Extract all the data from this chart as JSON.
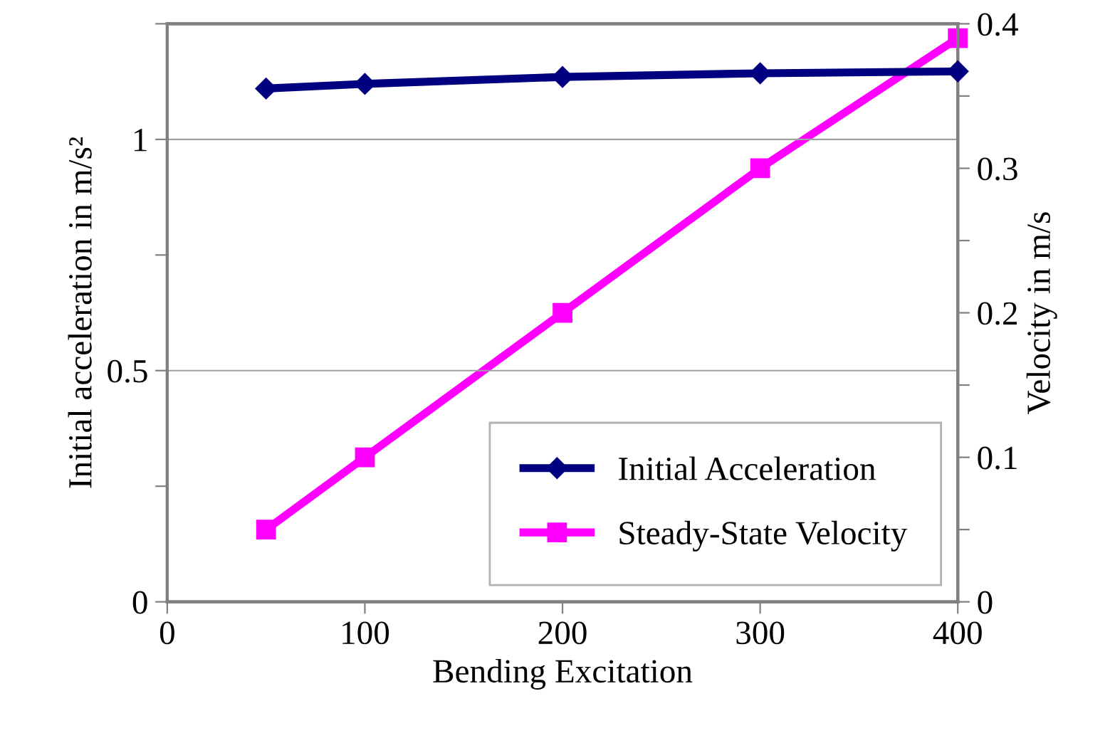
{
  "chart_data": {
    "type": "line",
    "xlabel": "Bending Excitation",
    "ylabel": "Initial acceleration in m/s²",
    "y2label": "Velocity in m/s",
    "x": [
      50,
      100,
      200,
      300,
      400
    ],
    "series": [
      {
        "name": "Initial Acceleration",
        "color": "#000080",
        "values": [
          1.11,
          1.12,
          1.135,
          1.143,
          1.147
        ],
        "marker": "diamond"
      },
      {
        "name": "Steady-State Velocity",
        "color": "#ff00ff",
        "values": [
          0.05,
          0.1,
          0.2,
          0.3,
          0.39
        ],
        "marker": "square",
        "axis": "y2"
      }
    ],
    "xlim": [
      0,
      400
    ],
    "xticks": [
      0,
      100,
      200,
      300,
      400
    ],
    "ylim": [
      0,
      1.25
    ],
    "yticks": [
      0,
      {
        "value": 0.25,
        "label": null
      },
      0.5,
      {
        "value": 0.75,
        "label": null
      },
      1,
      {
        "value": 1.25,
        "label": null
      }
    ],
    "y2lim": [
      0,
      0.4
    ],
    "y2ticks": [
      0,
      {
        "value": 0.05,
        "label": null
      },
      0.1,
      {
        "value": 0.15,
        "label": null
      },
      0.2,
      {
        "value": 0.25,
        "label": null
      },
      0.3,
      {
        "value": 0.35,
        "label": null
      },
      0.4
    ],
    "grid": "y",
    "legend": "bottom right",
    "line_style": "solid"
  }
}
